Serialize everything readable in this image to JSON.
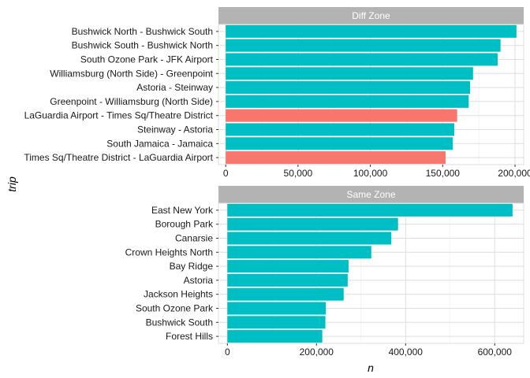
{
  "chart_data": {
    "type": "bar",
    "orientation": "horizontal",
    "xlabel": "n",
    "ylabel": "trip",
    "grid": true,
    "colors": {
      "red": "#F8766D",
      "teal": "#00BFC4",
      "strip": "#B3B3B3",
      "grid": "#DEDEDE",
      "panel_border": "#DEDEDE"
    },
    "panels": [
      {
        "strip": "Diff Zone",
        "xlim": [
          -5000,
          206000
        ],
        "xticks": [
          0,
          50000,
          100000,
          150000,
          200000
        ],
        "xtick_labels": [
          "0",
          "50,000",
          "100,000",
          "150,000",
          "200,000"
        ],
        "categories": [
          "Bushwick North - Bushwick South",
          "Bushwick South - Bushwick North",
          "South Ozone Park - JFK Airport",
          "Williamsburg (North Side) - Greenpoint",
          "Astoria - Steinway",
          "Greenpoint - Williamsburg (North Side)",
          "LaGuardia Airport - Times Sq/Theatre District",
          "Steinway - Astoria",
          "South Jamaica - Jamaica",
          "Times Sq/Theatre District - LaGuardia Airport"
        ],
        "values": [
          201000,
          190000,
          188000,
          171000,
          169000,
          168000,
          160000,
          158000,
          157000,
          152000
        ],
        "bar_colors": [
          "teal",
          "teal",
          "teal",
          "teal",
          "teal",
          "teal",
          "red",
          "teal",
          "teal",
          "red"
        ]
      },
      {
        "strip": "Same Zone",
        "xlim": [
          -20000,
          665000
        ],
        "xticks": [
          0,
          200000,
          400000,
          600000
        ],
        "xtick_labels": [
          "0",
          "200,000",
          "400,000",
          "600,000"
        ],
        "categories": [
          "East New York",
          "Borough Park",
          "Canarsie",
          "Crown Heights North",
          "Bay Ridge",
          "Astoria",
          "Jackson Heights",
          "South Ozone Park",
          "Bushwick South",
          "Forest Hills"
        ],
        "values": [
          640000,
          383000,
          368000,
          323000,
          272000,
          270000,
          261000,
          221000,
          220000,
          213000
        ],
        "bar_colors": [
          "teal",
          "teal",
          "teal",
          "teal",
          "teal",
          "teal",
          "teal",
          "teal",
          "teal",
          "teal"
        ]
      }
    ]
  }
}
